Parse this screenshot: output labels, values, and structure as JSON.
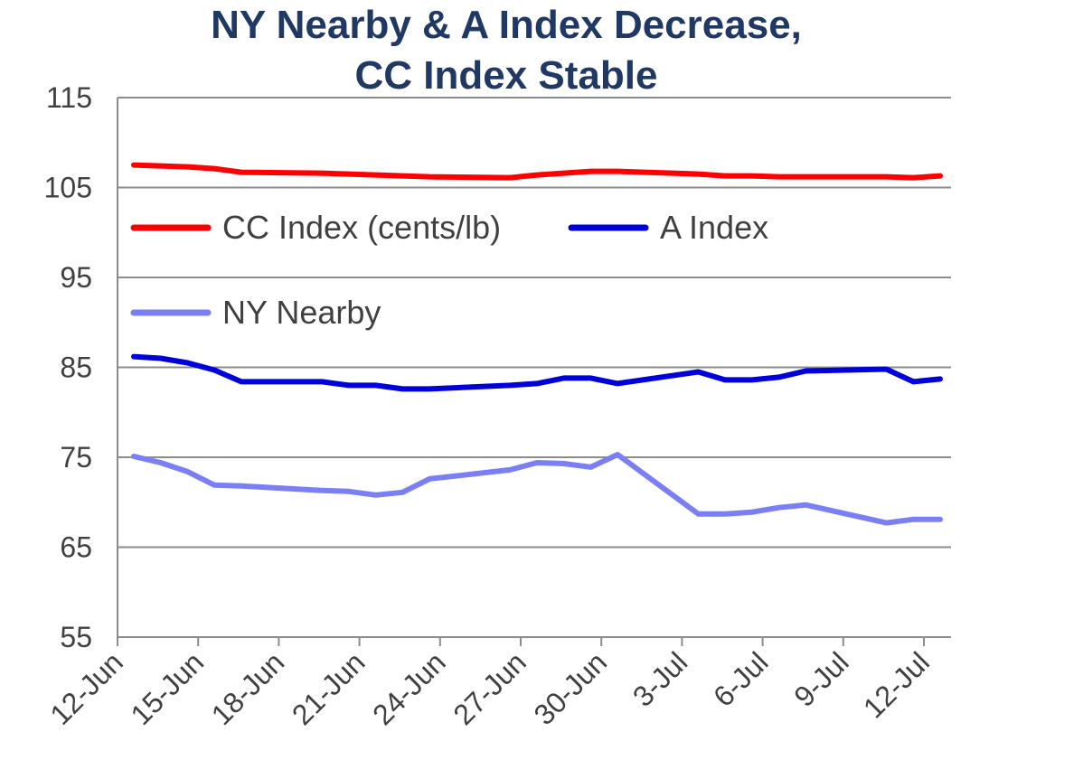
{
  "chart_data": {
    "type": "line",
    "title_line1": "NY Nearby & A Index Decrease,",
    "title_line2": "CC Index Stable",
    "xlabel": "",
    "ylabel": "",
    "ylim": [
      55,
      115
    ],
    "yticks": [
      "55",
      "65",
      "75",
      "85",
      "95",
      "105",
      "115"
    ],
    "xtick_labels": [
      "12-Jun",
      "15-Jun",
      "18-Jun",
      "21-Jun",
      "24-Jun",
      "27-Jun",
      "30-Jun",
      "3-Jul",
      "6-Jul",
      "9-Jul",
      "12-Jul"
    ],
    "x": [
      "12-Jun",
      "13-Jun",
      "14-Jun",
      "15-Jun",
      "16-Jun",
      "19-Jun",
      "20-Jun",
      "21-Jun",
      "22-Jun",
      "23-Jun",
      "26-Jun",
      "27-Jun",
      "28-Jun",
      "29-Jun",
      "30-Jun",
      "3-Jul",
      "4-Jul",
      "5-Jul",
      "6-Jul",
      "7-Jul",
      "10-Jul",
      "11-Jul",
      "12-Jul"
    ],
    "grid": true,
    "legend_position": "upper-left",
    "series": [
      {
        "name": "CC Index (cents/lb)",
        "color": "#ff0000",
        "values": [
          107.5,
          107.4,
          107.3,
          107.1,
          106.7,
          106.6,
          106.5,
          106.4,
          106.3,
          106.2,
          106.1,
          106.4,
          106.6,
          106.8,
          106.8,
          106.5,
          106.3,
          106.3,
          106.2,
          106.2,
          106.2,
          106.1,
          106.3
        ]
      },
      {
        "name": "A Index",
        "color": "#0000dd",
        "values": [
          86.2,
          86.0,
          85.5,
          84.7,
          83.4,
          83.4,
          83.0,
          83.0,
          82.6,
          82.6,
          83.0,
          83.2,
          83.8,
          83.8,
          83.2,
          84.5,
          83.6,
          83.6,
          83.9,
          84.6,
          84.8,
          83.4,
          83.7
        ]
      },
      {
        "name": "NY Nearby",
        "color": "#7b7ff5",
        "values": [
          75.1,
          74.4,
          73.4,
          71.9,
          71.8,
          71.3,
          71.2,
          70.8,
          71.1,
          72.6,
          73.6,
          74.4,
          74.3,
          73.9,
          75.3,
          68.7,
          68.7,
          68.9,
          69.4,
          69.7,
          67.7,
          68.1,
          68.1
        ]
      }
    ]
  }
}
